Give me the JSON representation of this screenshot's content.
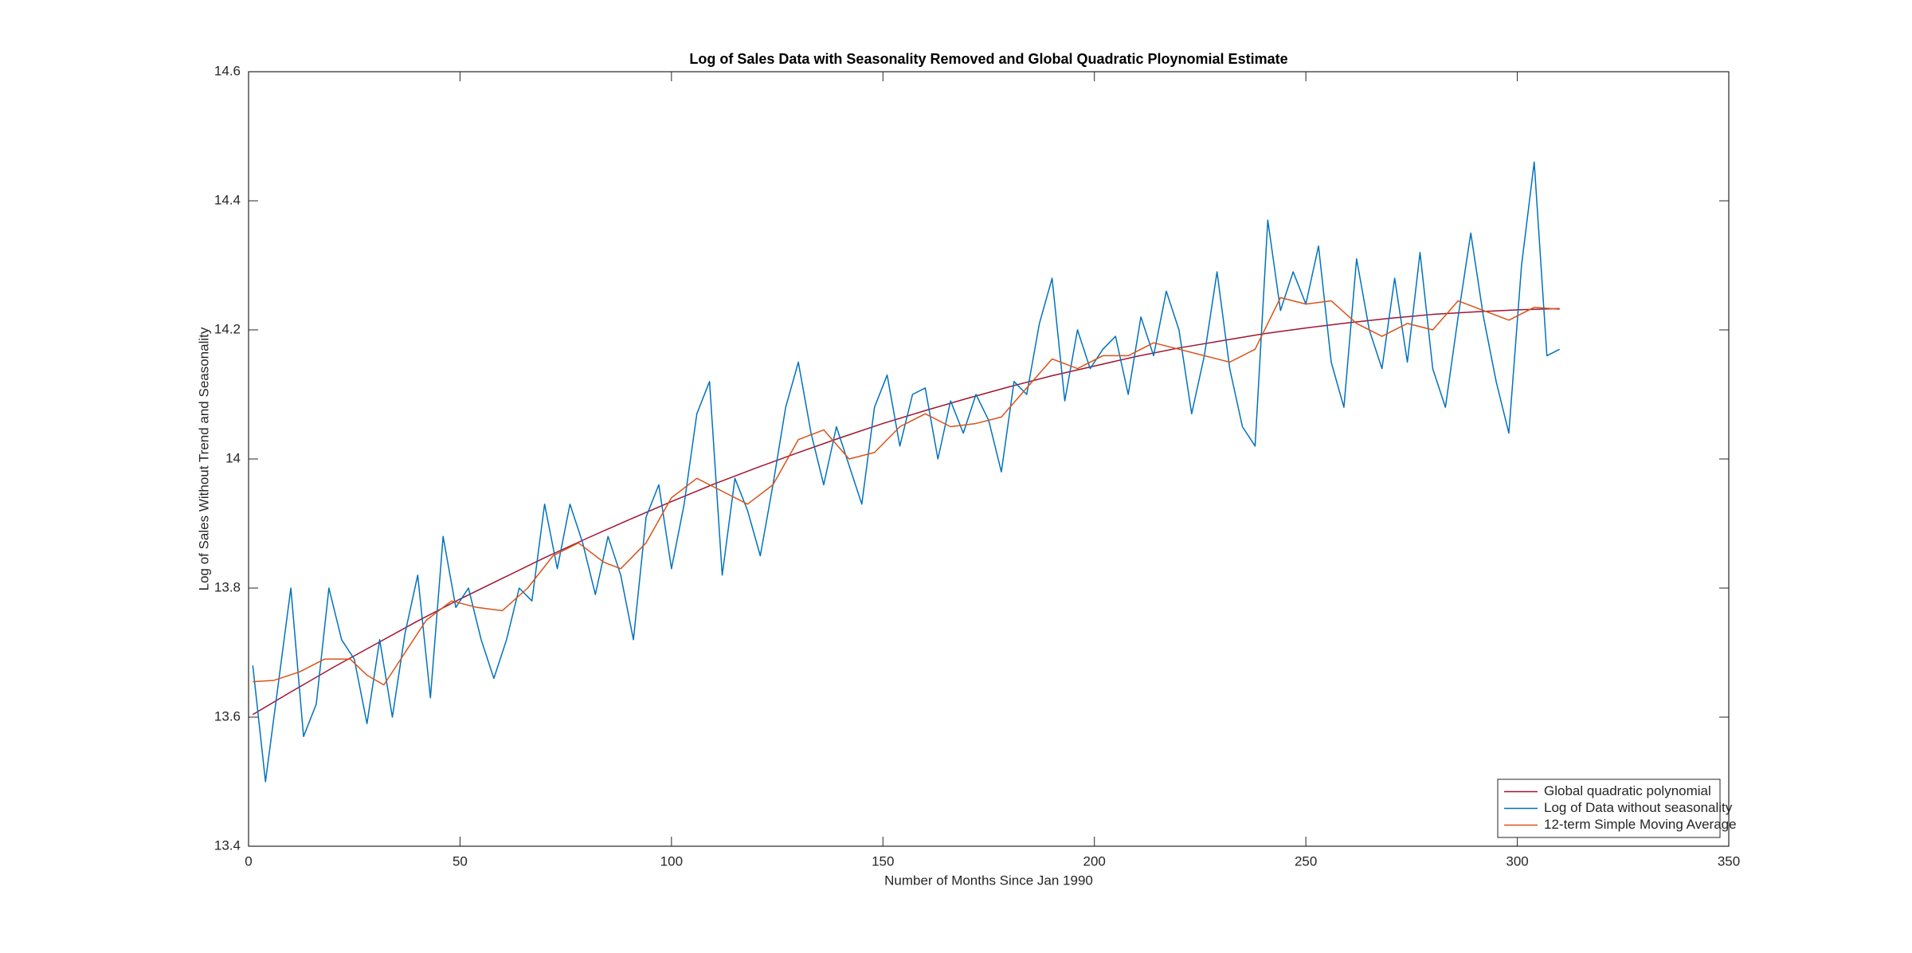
{
  "chart_data": {
    "type": "line",
    "title": "Log of Sales Data with Seasonality Removed and Global Quadratic Ploynomial Estimate",
    "xlabel": "Number of Months Since Jan 1990",
    "ylabel": "Log of Sales Without Trend and Seasonality",
    "xlim": [
      0,
      350
    ],
    "xticks": [
      0,
      50,
      100,
      150,
      200,
      250,
      300,
      350
    ],
    "ylim": [
      13.4,
      14.6
    ],
    "yticks": [
      13.4,
      13.6,
      13.8,
      14,
      14.2,
      14.4,
      14.6
    ],
    "legend": "southeast",
    "series": [
      {
        "name": "Global quadratic polynomial",
        "color": "#a2142f",
        "x": [
          1,
          10,
          20,
          30,
          40,
          50,
          60,
          70,
          80,
          90,
          100,
          110,
          120,
          130,
          140,
          150,
          160,
          170,
          180,
          190,
          200,
          210,
          220,
          230,
          240,
          250,
          260,
          270,
          280,
          290,
          300,
          310
        ],
        "values": [
          13.604,
          13.639,
          13.677,
          13.713,
          13.749,
          13.783,
          13.815,
          13.847,
          13.877,
          13.906,
          13.934,
          13.961,
          13.986,
          14.01,
          14.033,
          14.055,
          14.075,
          14.094,
          14.112,
          14.129,
          14.144,
          14.159,
          14.172,
          14.183,
          14.194,
          14.203,
          14.211,
          14.218,
          14.224,
          14.228,
          14.231,
          14.233
        ]
      },
      {
        "name": "Log of Data without seasonality",
        "color": "#0072bd",
        "x": [
          1,
          4,
          7,
          10,
          13,
          16,
          19,
          22,
          25,
          28,
          31,
          34,
          37,
          40,
          43,
          46,
          49,
          52,
          55,
          58,
          61,
          64,
          67,
          70,
          73,
          76,
          79,
          82,
          85,
          88,
          91,
          94,
          97,
          100,
          103,
          106,
          109,
          112,
          115,
          118,
          121,
          124,
          127,
          130,
          133,
          136,
          139,
          142,
          145,
          148,
          151,
          154,
          157,
          160,
          163,
          166,
          169,
          172,
          175,
          178,
          181,
          184,
          187,
          190,
          193,
          196,
          199,
          202,
          205,
          208,
          211,
          214,
          217,
          220,
          223,
          226,
          229,
          232,
          235,
          238,
          241,
          244,
          247,
          250,
          253,
          256,
          259,
          262,
          265,
          268,
          271,
          274,
          277,
          280,
          283,
          286,
          289,
          292,
          295,
          298,
          301,
          304,
          307,
          310
        ],
        "values": [
          13.68,
          13.5,
          13.65,
          13.8,
          13.57,
          13.62,
          13.8,
          13.72,
          13.69,
          13.59,
          13.72,
          13.6,
          13.73,
          13.82,
          13.63,
          13.88,
          13.77,
          13.8,
          13.72,
          13.66,
          13.72,
          13.8,
          13.78,
          13.93,
          13.83,
          13.93,
          13.87,
          13.79,
          13.88,
          13.82,
          13.72,
          13.91,
          13.96,
          13.83,
          13.93,
          14.07,
          14.12,
          13.82,
          13.97,
          13.92,
          13.85,
          13.96,
          14.08,
          14.15,
          14.04,
          13.96,
          14.05,
          13.99,
          13.93,
          14.08,
          14.13,
          14.02,
          14.1,
          14.11,
          14.0,
          14.09,
          14.04,
          14.1,
          14.06,
          13.98,
          14.12,
          14.1,
          14.21,
          14.28,
          14.09,
          14.2,
          14.14,
          14.17,
          14.19,
          14.1,
          14.22,
          14.16,
          14.26,
          14.2,
          14.07,
          14.16,
          14.29,
          14.14,
          14.05,
          14.02,
          14.37,
          14.23,
          14.29,
          14.24,
          14.33,
          14.15,
          14.08,
          14.31,
          14.2,
          14.14,
          14.28,
          14.15,
          14.32,
          14.14,
          14.08,
          14.22,
          14.35,
          14.22,
          14.12,
          14.04,
          14.3,
          14.46,
          14.16,
          14.17
        ]
      },
      {
        "name": "12-term Simple Moving Average",
        "color": "#d95319",
        "x": [
          1,
          6,
          12,
          18,
          24,
          28,
          32,
          36,
          42,
          48,
          54,
          60,
          66,
          72,
          78,
          84,
          88,
          94,
          100,
          106,
          112,
          118,
          124,
          130,
          136,
          142,
          148,
          154,
          160,
          166,
          172,
          178,
          184,
          190,
          196,
          202,
          208,
          214,
          220,
          226,
          232,
          238,
          244,
          250,
          256,
          262,
          268,
          274,
          280,
          286,
          292,
          298,
          304,
          310
        ],
        "values": [
          13.655,
          13.657,
          13.67,
          13.69,
          13.69,
          13.665,
          13.65,
          13.69,
          13.75,
          13.78,
          13.77,
          13.765,
          13.8,
          13.85,
          13.87,
          13.84,
          13.83,
          13.87,
          13.94,
          13.97,
          13.95,
          13.93,
          13.96,
          14.03,
          14.045,
          14.0,
          14.01,
          14.05,
          14.07,
          14.05,
          14.055,
          14.065,
          14.11,
          14.155,
          14.14,
          14.16,
          14.16,
          14.18,
          14.17,
          14.16,
          14.15,
          14.17,
          14.25,
          14.24,
          14.245,
          14.21,
          14.19,
          14.21,
          14.2,
          14.245,
          14.23,
          14.215,
          14.235,
          14.232
        ]
      }
    ]
  }
}
